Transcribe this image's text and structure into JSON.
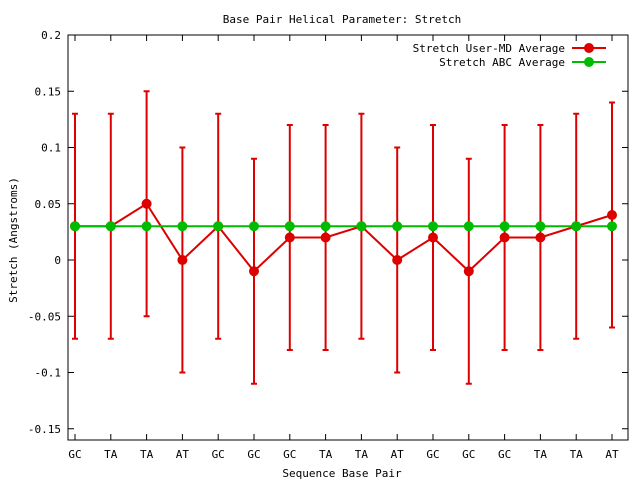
{
  "chart_data": {
    "type": "line",
    "title": "Base Pair Helical Parameter: Stretch",
    "xlabel": "Sequence Base Pair",
    "ylabel": "Stretch (Angstroms)",
    "categories": [
      "GC",
      "TA",
      "TA",
      "AT",
      "GC",
      "GC",
      "GC",
      "TA",
      "TA",
      "AT",
      "GC",
      "GC",
      "GC",
      "TA",
      "TA",
      "AT"
    ],
    "ylim": [
      -0.16,
      0.2
    ],
    "yticks": [
      -0.15,
      -0.1,
      -0.05,
      0,
      0.05,
      0.1,
      0.15,
      0.2
    ],
    "ytick_labels": [
      "-0.15",
      "-0.1",
      "-0.05",
      "0",
      "0.05",
      "0.1",
      "0.15",
      "0.2"
    ],
    "legend_position": "top-right",
    "series": [
      {
        "name": "Stretch User-MD Average",
        "color": "#dd0000",
        "values": [
          0.03,
          0.03,
          0.05,
          0.0,
          0.03,
          -0.01,
          0.02,
          0.02,
          0.03,
          0.0,
          0.02,
          -0.01,
          0.02,
          0.02,
          0.03,
          0.04
        ],
        "errors": [
          0.1,
          0.1,
          0.1,
          0.1,
          0.1,
          0.1,
          0.1,
          0.1,
          0.1,
          0.1,
          0.1,
          0.1,
          0.1,
          0.1,
          0.1,
          0.1
        ]
      },
      {
        "name": "Stretch ABC Average",
        "color": "#00bb00",
        "values": [
          0.03,
          0.03,
          0.03,
          0.03,
          0.03,
          0.03,
          0.03,
          0.03,
          0.03,
          0.03,
          0.03,
          0.03,
          0.03,
          0.03,
          0.03,
          0.03
        ]
      }
    ]
  }
}
